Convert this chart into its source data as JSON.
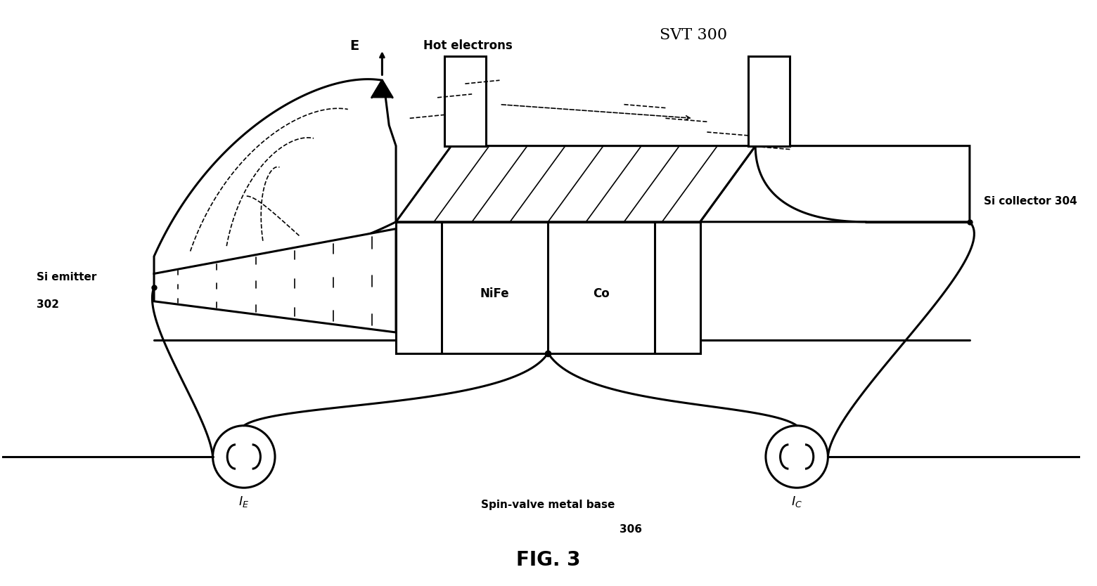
{
  "title": "SVT 300",
  "fig_label": "FIG. 3",
  "label_emitter_line1": "Si emitter",
  "label_emitter_line2": "302",
  "label_collector": "Si collector 304",
  "label_nife": "NiFe",
  "label_co": "Co",
  "label_base_line1": "Spin-valve metal base",
  "label_base_line2": "306",
  "label_e": "E",
  "label_hot": "Hot electrons",
  "bg_color": "#ffffff",
  "line_color": "#000000",
  "fig_width": 15.6,
  "fig_height": 8.34
}
